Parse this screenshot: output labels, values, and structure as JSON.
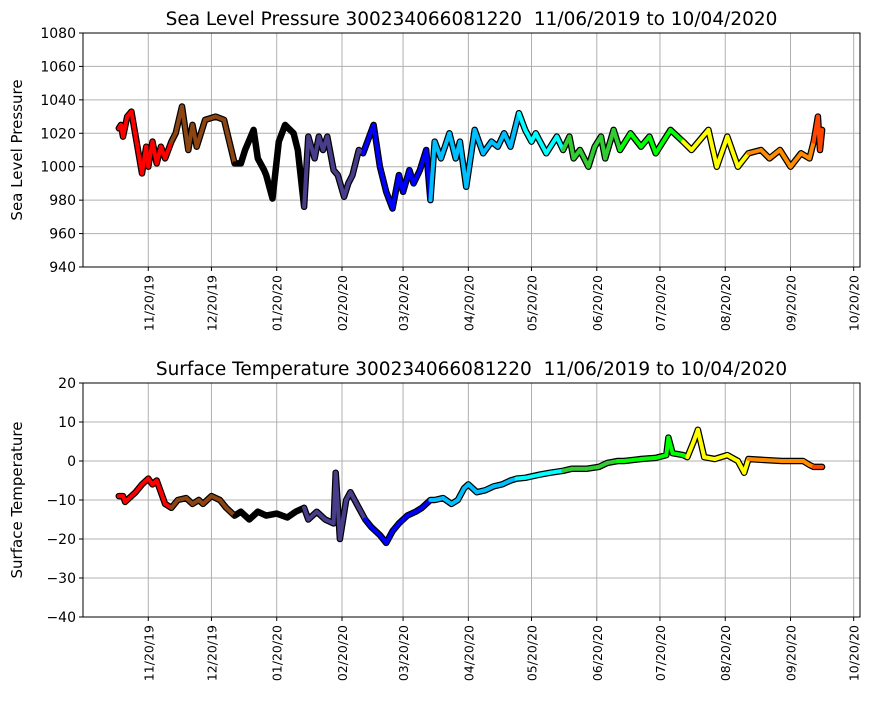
{
  "chart_data": [
    {
      "type": "line",
      "title": "Sea Level Pressure 300234066081220  11/06/2019 to 10/04/2020",
      "xlabel": "",
      "ylabel": "Sea Level Pressure",
      "ylim": [
        940,
        1080
      ],
      "yticks": [
        940,
        960,
        980,
        1000,
        1020,
        1040,
        1060,
        1080
      ],
      "x_unit": "days since 11/06/2019",
      "xlim": [
        -17,
        352
      ],
      "grid": true,
      "points": [
        [
          0,
          1023
        ],
        [
          1,
          1025
        ],
        [
          2,
          1018
        ],
        [
          4,
          1030
        ],
        [
          6,
          1033
        ],
        [
          11,
          996
        ],
        [
          13,
          1012
        ],
        [
          14,
          1000
        ],
        [
          16,
          1015
        ],
        [
          18,
          1002
        ],
        [
          20,
          1012
        ],
        [
          22,
          1005
        ],
        [
          25,
          1015
        ],
        [
          27,
          1020
        ],
        [
          30,
          1036
        ],
        [
          33,
          1010
        ],
        [
          35,
          1025
        ],
        [
          37,
          1012
        ],
        [
          41,
          1028
        ],
        [
          46,
          1030
        ],
        [
          50,
          1028
        ],
        [
          55,
          1002
        ],
        [
          58,
          1002
        ],
        [
          60,
          1010
        ],
        [
          64,
          1022
        ],
        [
          66,
          1005
        ],
        [
          69,
          998
        ],
        [
          70,
          995
        ],
        [
          73,
          981
        ],
        [
          76,
          1015
        ],
        [
          79,
          1025
        ],
        [
          83,
          1020
        ],
        [
          85,
          1010
        ],
        [
          88,
          976
        ],
        [
          90,
          1018
        ],
        [
          93,
          1005
        ],
        [
          95,
          1018
        ],
        [
          97,
          1010
        ],
        [
          99,
          1018
        ],
        [
          102,
          998
        ],
        [
          104,
          995
        ],
        [
          107,
          982
        ],
        [
          109,
          990
        ],
        [
          111,
          995
        ],
        [
          114,
          1010
        ],
        [
          116,
          1008
        ],
        [
          121,
          1025
        ],
        [
          124,
          1000
        ],
        [
          127,
          985
        ],
        [
          130,
          975
        ],
        [
          133,
          995
        ],
        [
          135,
          985
        ],
        [
          138,
          998
        ],
        [
          140,
          990
        ],
        [
          143,
          998
        ],
        [
          146,
          1010
        ],
        [
          148,
          980
        ],
        [
          150,
          1015
        ],
        [
          153,
          1005
        ],
        [
          157,
          1020
        ],
        [
          160,
          1005
        ],
        [
          162,
          1015
        ],
        [
          165,
          988
        ],
        [
          169,
          1022
        ],
        [
          173,
          1008
        ],
        [
          177,
          1015
        ],
        [
          180,
          1012
        ],
        [
          183,
          1020
        ],
        [
          186,
          1012
        ],
        [
          190,
          1032
        ],
        [
          193,
          1022
        ],
        [
          196,
          1015
        ],
        [
          198,
          1020
        ],
        [
          203,
          1008
        ],
        [
          208,
          1018
        ],
        [
          211,
          1010
        ],
        [
          214,
          1018
        ],
        [
          216,
          1005
        ],
        [
          219,
          1010
        ],
        [
          223,
          1000
        ],
        [
          226,
          1012
        ],
        [
          229,
          1018
        ],
        [
          231,
          1005
        ],
        [
          235,
          1022
        ],
        [
          238,
          1010
        ],
        [
          243,
          1020
        ],
        [
          248,
          1012
        ],
        [
          252,
          1018
        ],
        [
          255,
          1008
        ],
        [
          262,
          1022
        ],
        [
          268,
          1015
        ],
        [
          272,
          1010
        ],
        [
          280,
          1022
        ],
        [
          284,
          1000
        ],
        [
          289,
          1018
        ],
        [
          294,
          1000
        ],
        [
          299,
          1008
        ],
        [
          305,
          1010
        ],
        [
          309,
          1005
        ],
        [
          314,
          1010
        ],
        [
          319,
          1000
        ],
        [
          324,
          1008
        ],
        [
          328,
          1005
        ],
        [
          330,
          1015
        ],
        [
          332,
          1030
        ],
        [
          333,
          1010
        ],
        [
          334,
          1022
        ]
      ]
    },
    {
      "type": "line",
      "title": "Surface Temperature 300234066081220  11/06/2019 to 10/04/2020",
      "xlabel": "",
      "ylabel": "Surface Temperature",
      "ylim": [
        -40,
        20
      ],
      "yticks": [
        -40,
        -30,
        -20,
        -10,
        0,
        10,
        20
      ],
      "x_unit": "days since 11/06/2019",
      "xlim": [
        -17,
        352
      ],
      "grid": true,
      "points": [
        [
          0,
          -9
        ],
        [
          2,
          -9
        ],
        [
          3,
          -10.5
        ],
        [
          8,
          -8
        ],
        [
          11,
          -6
        ],
        [
          14,
          -4.5
        ],
        [
          16,
          -6
        ],
        [
          18,
          -5
        ],
        [
          20,
          -8
        ],
        [
          22,
          -11
        ],
        [
          25,
          -12
        ],
        [
          28,
          -10
        ],
        [
          32,
          -9.5
        ],
        [
          35,
          -11
        ],
        [
          38,
          -10
        ],
        [
          40,
          -11
        ],
        [
          44,
          -9
        ],
        [
          48,
          -10
        ],
        [
          51,
          -12
        ],
        [
          55,
          -14
        ],
        [
          58,
          -13
        ],
        [
          62,
          -15
        ],
        [
          66,
          -13
        ],
        [
          70,
          -14
        ],
        [
          75,
          -13.5
        ],
        [
          80,
          -14.5
        ],
        [
          84,
          -13
        ],
        [
          88,
          -12
        ],
        [
          90,
          -15
        ],
        [
          94,
          -13
        ],
        [
          98,
          -15
        ],
        [
          102,
          -16
        ],
        [
          103,
          -3
        ],
        [
          105,
          -20
        ],
        [
          108,
          -10
        ],
        [
          110,
          -8
        ],
        [
          114,
          -12
        ],
        [
          117,
          -15
        ],
        [
          120,
          -17
        ],
        [
          124,
          -19
        ],
        [
          127,
          -21
        ],
        [
          130,
          -18
        ],
        [
          133,
          -16
        ],
        [
          137,
          -14
        ],
        [
          141,
          -13
        ],
        [
          144,
          -12
        ],
        [
          148,
          -10
        ],
        [
          150,
          -10
        ],
        [
          154,
          -9.5
        ],
        [
          158,
          -11
        ],
        [
          161,
          -10
        ],
        [
          164,
          -7
        ],
        [
          166,
          -6
        ],
        [
          170,
          -8
        ],
        [
          174,
          -7.5
        ],
        [
          178,
          -6.5
        ],
        [
          182,
          -6
        ],
        [
          186,
          -5
        ],
        [
          189,
          -4.5
        ],
        [
          193,
          -4.3
        ],
        [
          200,
          -3.5
        ],
        [
          205,
          -3
        ],
        [
          211,
          -2.5
        ],
        [
          215,
          -2
        ],
        [
          222,
          -2
        ],
        [
          228,
          -1.5
        ],
        [
          232,
          -0.5
        ],
        [
          237,
          0
        ],
        [
          240,
          0
        ],
        [
          248,
          0.5
        ],
        [
          255,
          0.8
        ],
        [
          260,
          1.5
        ],
        [
          261,
          6
        ],
        [
          263,
          2
        ],
        [
          268,
          1.5
        ],
        [
          270,
          1
        ],
        [
          273,
          5
        ],
        [
          275,
          8
        ],
        [
          278,
          1
        ],
        [
          283,
          0.5
        ],
        [
          289,
          1.5
        ],
        [
          294,
          0
        ],
        [
          297,
          -3
        ],
        [
          299,
          0.5
        ],
        [
          305,
          0.3
        ],
        [
          315,
          0
        ],
        [
          325,
          0
        ],
        [
          328,
          -1
        ],
        [
          330,
          -1.5
        ],
        [
          334,
          -1.5
        ]
      ]
    }
  ],
  "segments": [
    {
      "from": 0,
      "to": 25,
      "color": "#ff0000"
    },
    {
      "from": 25,
      "to": 55,
      "color": "#8b4513"
    },
    {
      "from": 55,
      "to": 88,
      "color": "#000000"
    },
    {
      "from": 88,
      "to": 117,
      "color": "#483d8b"
    },
    {
      "from": 117,
      "to": 148,
      "color": "#0000ff"
    },
    {
      "from": 148,
      "to": 189,
      "color": "#00bfff"
    },
    {
      "from": 189,
      "to": 212,
      "color": "#00ffff"
    },
    {
      "from": 212,
      "to": 237,
      "color": "#32cd32"
    },
    {
      "from": 237,
      "to": 269,
      "color": "#00ff00"
    },
    {
      "from": 269,
      "to": 300,
      "color": "#ffff00"
    },
    {
      "from": 300,
      "to": 329,
      "color": "#ff8c00"
    },
    {
      "from": 329,
      "to": 334,
      "color": "#ff4500"
    }
  ],
  "xticks": [
    {
      "label": "11/20/19",
      "day": 14
    },
    {
      "label": "12/20/19",
      "day": 44
    },
    {
      "label": "01/20/20",
      "day": 75
    },
    {
      "label": "02/20/20",
      "day": 106
    },
    {
      "label": "03/20/20",
      "day": 135
    },
    {
      "label": "04/20/20",
      "day": 166
    },
    {
      "label": "05/20/20",
      "day": 196
    },
    {
      "label": "06/20/20",
      "day": 227
    },
    {
      "label": "07/20/20",
      "day": 257
    },
    {
      "label": "08/20/20",
      "day": 288
    },
    {
      "label": "09/20/20",
      "day": 319
    },
    {
      "label": "10/20/20",
      "day": 349
    }
  ]
}
